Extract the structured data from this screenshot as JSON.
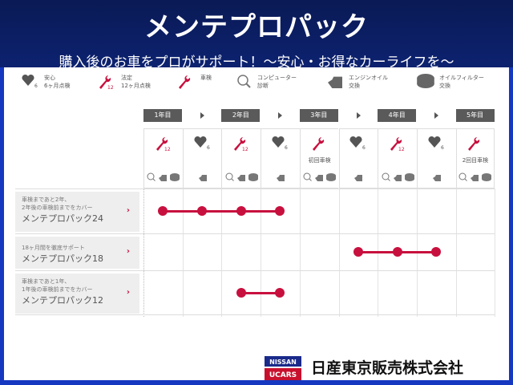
{
  "header": {
    "title": "メンテプロパック",
    "subtitle": "購入後のお車をプロがサポート！～安心・お得なカーライフを～"
  },
  "legend": [
    {
      "icon": "heart-6-icon",
      "l1": "安心",
      "l2": "6ヶ月点検"
    },
    {
      "icon": "wrench-12-icon",
      "l1": "法定",
      "l2": "12ヶ月点検"
    },
    {
      "icon": "wrench-icon",
      "l1": "車検",
      "l2": ""
    },
    {
      "icon": "computer-diagnosis-icon",
      "l1": "コンピューター",
      "l2": "診断"
    },
    {
      "icon": "engine-oil-icon",
      "l1": "エンジンオイル",
      "l2": "交換"
    },
    {
      "icon": "oil-filter-icon",
      "l1": "オイルフィルター",
      "l2": "交換"
    }
  ],
  "years": [
    "1年目",
    "2年目",
    "3年目",
    "4年目",
    "5年目"
  ],
  "columns": [
    {
      "type": "wrench12",
      "caption": "",
      "extras": 3
    },
    {
      "type": "heart6",
      "caption": "",
      "extras": 1
    },
    {
      "type": "wrench12",
      "caption": "",
      "extras": 3
    },
    {
      "type": "heart6",
      "caption": "",
      "extras": 1
    },
    {
      "type": "wrench",
      "caption": "初回車検",
      "extras": 3
    },
    {
      "type": "heart6",
      "caption": "",
      "extras": 1
    },
    {
      "type": "wrench12",
      "caption": "",
      "extras": 3
    },
    {
      "type": "heart6",
      "caption": "",
      "extras": 1
    },
    {
      "type": "wrench",
      "caption": "2回目車検",
      "extras": 3
    }
  ],
  "packs": [
    {
      "desc1": "車検まであと2年、",
      "desc2": "2年後の車検前までをカバー",
      "name": "メンテプロパック24",
      "start": 1,
      "end": 4
    },
    {
      "desc1": "18ヶ月間を徹底サポート",
      "desc2": "",
      "name": "メンテプロパック18",
      "start": 6,
      "end": 8
    },
    {
      "desc1": "車検まであと1年、",
      "desc2": "1年後の車検前までをカバー",
      "name": "メンテプロパック12",
      "start": 3,
      "end": 4
    }
  ],
  "footer": {
    "logo_top": "NISSAN",
    "logo_bottom": "UCARS",
    "company": "日産東京販売株式会社"
  },
  "colors": {
    "accent": "#c8103e",
    "header": "#0d2270",
    "border": "#1638c0"
  }
}
